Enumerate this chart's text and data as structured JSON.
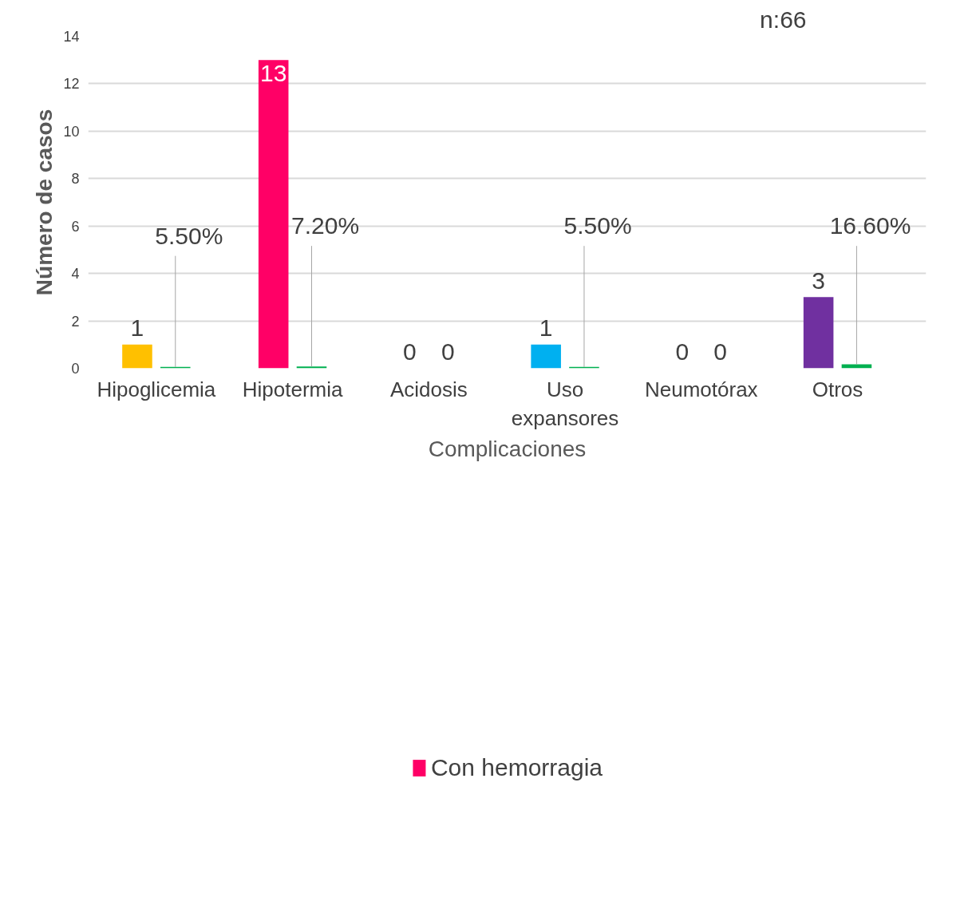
{
  "chart_data": {
    "type": "bar",
    "xlabel": "Complicaciones",
    "ylabel": "Número de casos",
    "categories": [
      "Hipoglicemia",
      "Hipotermia",
      "Acidosis",
      "Uso expansores",
      "Neumotórax",
      "Otros"
    ],
    "series": [
      {
        "name": "Con hemorragia",
        "color": "#ff0066",
        "colors": [
          "#ffc000",
          "#ff0066",
          "#a5a5a5",
          "#00b0f0",
          "#4472c4",
          "#7030a0"
        ],
        "values": [
          1,
          13,
          0,
          1,
          0,
          3
        ],
        "value_labels": [
          "1",
          "13",
          "0",
          "1",
          "0",
          "3"
        ]
      },
      {
        "color": "#00b050",
        "values": [
          0.055,
          0.072,
          0,
          0.055,
          0,
          0.166
        ],
        "value_labels": [
          "5.50%",
          "7.20%",
          "0",
          "5.50%",
          "0",
          "16.60%"
        ]
      }
    ],
    "ylim": [
      0,
      14
    ],
    "yticks": [
      0,
      2,
      4,
      6,
      8,
      10,
      12,
      14
    ],
    "grid": "y",
    "legend": "bottom",
    "annotations": [
      "n:66"
    ]
  }
}
